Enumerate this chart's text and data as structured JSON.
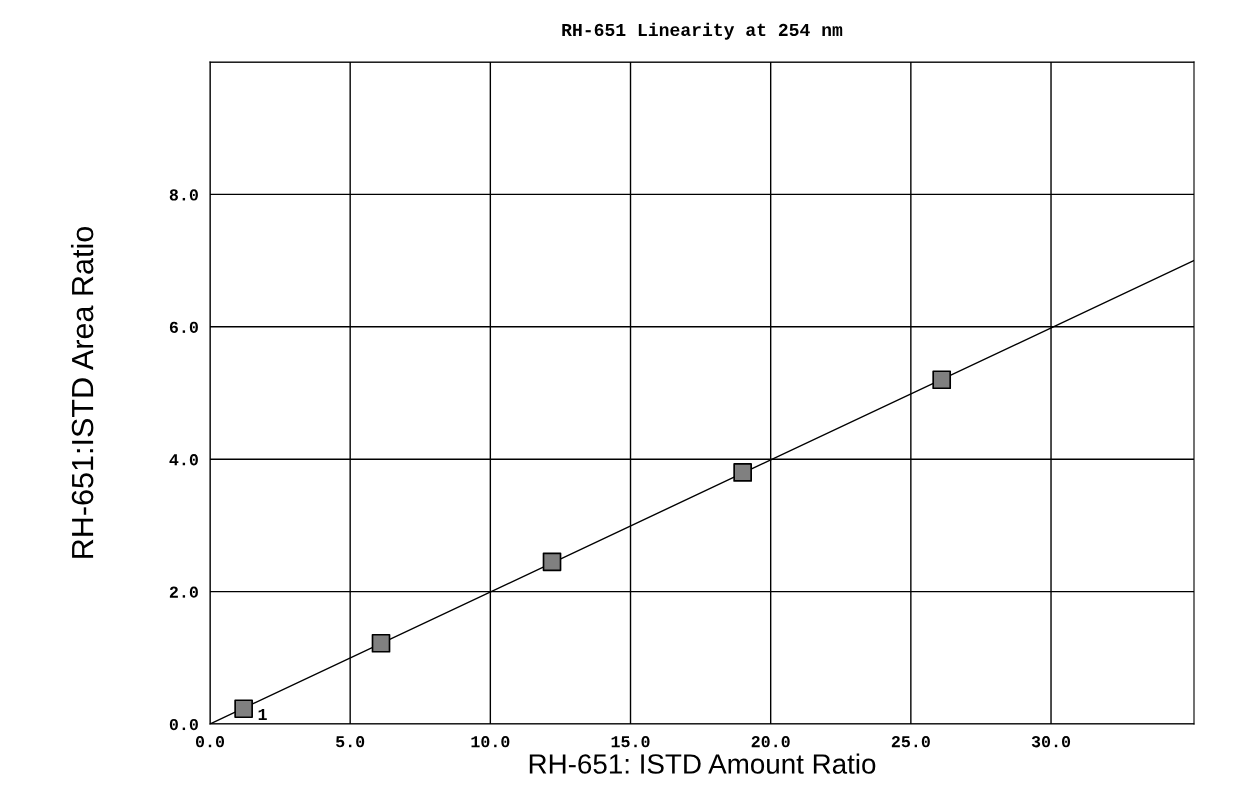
{
  "chart_data": {
    "type": "scatter",
    "title": "RH-651 Linearity at 254 nm",
    "xlabel": "RH-651: ISTD Amount Ratio",
    "ylabel": "RH-651:ISTD Area Ratio",
    "xlim": [
      0,
      35.1
    ],
    "ylim": [
      0,
      10
    ],
    "xticks": [
      {
        "value": 0,
        "label": "0.0"
      },
      {
        "value": 5,
        "label": "5.0"
      },
      {
        "value": 10,
        "label": "10.0"
      },
      {
        "value": 15,
        "label": "15.0"
      },
      {
        "value": 20,
        "label": "20.0"
      },
      {
        "value": 25,
        "label": "25.0"
      },
      {
        "value": 30,
        "label": "30.0"
      }
    ],
    "yticks": [
      {
        "value": 0,
        "label": "0.0"
      },
      {
        "value": 2,
        "label": "2.0"
      },
      {
        "value": 4,
        "label": "4.0"
      },
      {
        "value": 6,
        "label": "6.0"
      },
      {
        "value": 8,
        "label": "8.0"
      },
      {
        "value": 10,
        "label": null
      }
    ],
    "grid": true,
    "series": [
      {
        "marker": "square",
        "color": "#808080",
        "x": [
          1.2,
          6.1,
          12.2,
          19.0,
          26.1
        ],
        "values": [
          0.23,
          1.22,
          2.45,
          3.8,
          5.2
        ]
      },
      {
        "type": "line",
        "marker": "none",
        "color": "#000000",
        "x": [
          0,
          35.1
        ],
        "values": [
          0,
          7.0
        ]
      }
    ],
    "annotations": [
      {
        "text": "1",
        "x": 1.2,
        "y": 0.23
      }
    ]
  }
}
